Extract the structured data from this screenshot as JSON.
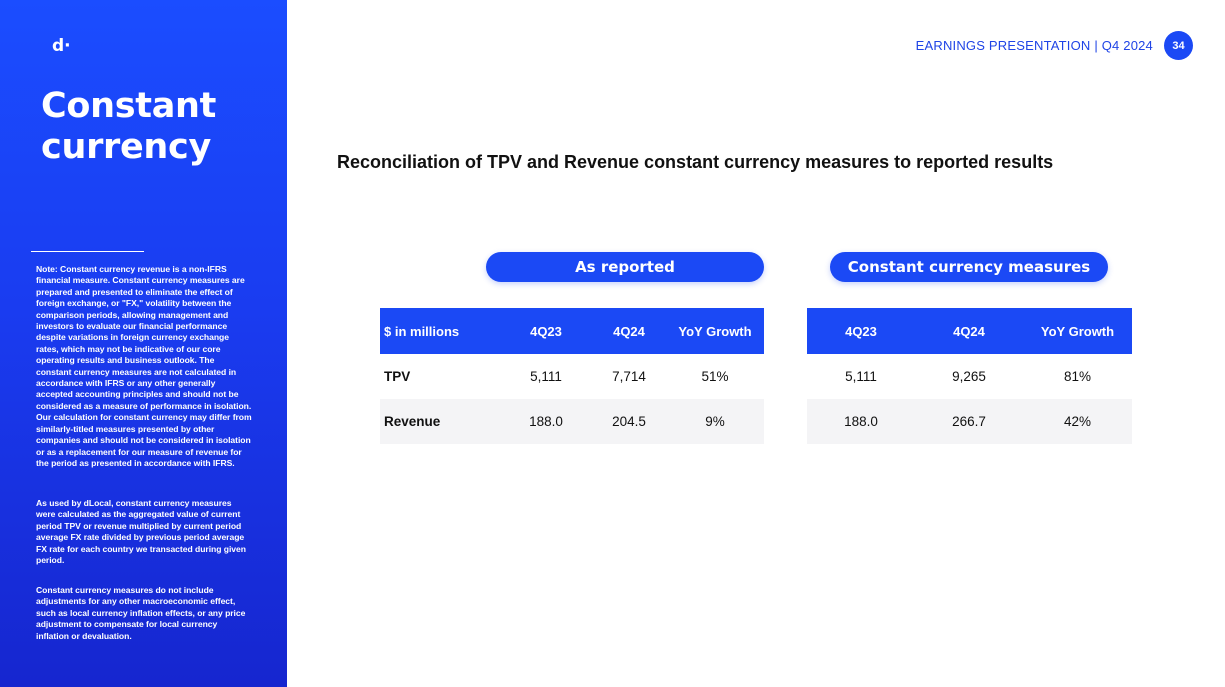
{
  "sidebar": {
    "logo": "d·",
    "title_line1": "Constant",
    "title_line2": "currency",
    "note1": "Note: Constant currency revenue is a non-IFRS financial measure. Constant currency measures are prepared and presented to eliminate the effect of foreign exchange, or \"FX,\" volatility between the comparison periods, allowing management and investors to evaluate our financial performance despite variations in foreign currency exchange rates, which may not be indicative of our core operating results and business outlook. The constant currency measures are not calculated in accordance with IFRS or any other generally accepted accounting principles and should not be considered as a measure of performance in isolation. Our calculation for constant currency may differ from similarly-titled measures presented by other companies and should not be considered in isolation or as a replacement for our measure of revenue for the period as presented in accordance with IFRS.",
    "note2": "As used by dLocal, constant currency measures were calculated as the aggregated value of current period TPV or revenue multiplied by current period average FX rate divided by previous period average FX rate for each country we transacted during given period.",
    "note3": "Constant currency measures do not include adjustments for any other macroeconomic effect, such as local currency inflation effects, or any price adjustment to compensate for local currency inflation or devaluation."
  },
  "header": {
    "label": "EARNINGS PRESENTATION | Q4 2024",
    "page_number": "34"
  },
  "main": {
    "title": "Reconciliation of TPV and Revenue constant currency measures to reported results",
    "as_reported": {
      "pill": "As reported",
      "headers": [
        "$ in millions",
        "4Q23",
        "4Q24",
        "YoY Growth"
      ],
      "rows": [
        {
          "label": "TPV",
          "q23": "5,111",
          "q24": "7,714",
          "growth": "51%"
        },
        {
          "label": "Revenue",
          "q23": "188.0",
          "q24": "204.5",
          "growth": "9%"
        }
      ]
    },
    "constant_currency": {
      "pill": "Constant currency measures",
      "headers": [
        "4Q23",
        "4Q24",
        "YoY Growth"
      ],
      "rows": [
        {
          "q23": "5,111",
          "q24": "9,265",
          "growth": "81%"
        },
        {
          "q23": "188.0",
          "q24": "266.7",
          "growth": "42%"
        }
      ]
    }
  },
  "colors": {
    "brand_blue": "#1b49f5",
    "text": "#111111",
    "row_alt": "#f4f4f6"
  }
}
